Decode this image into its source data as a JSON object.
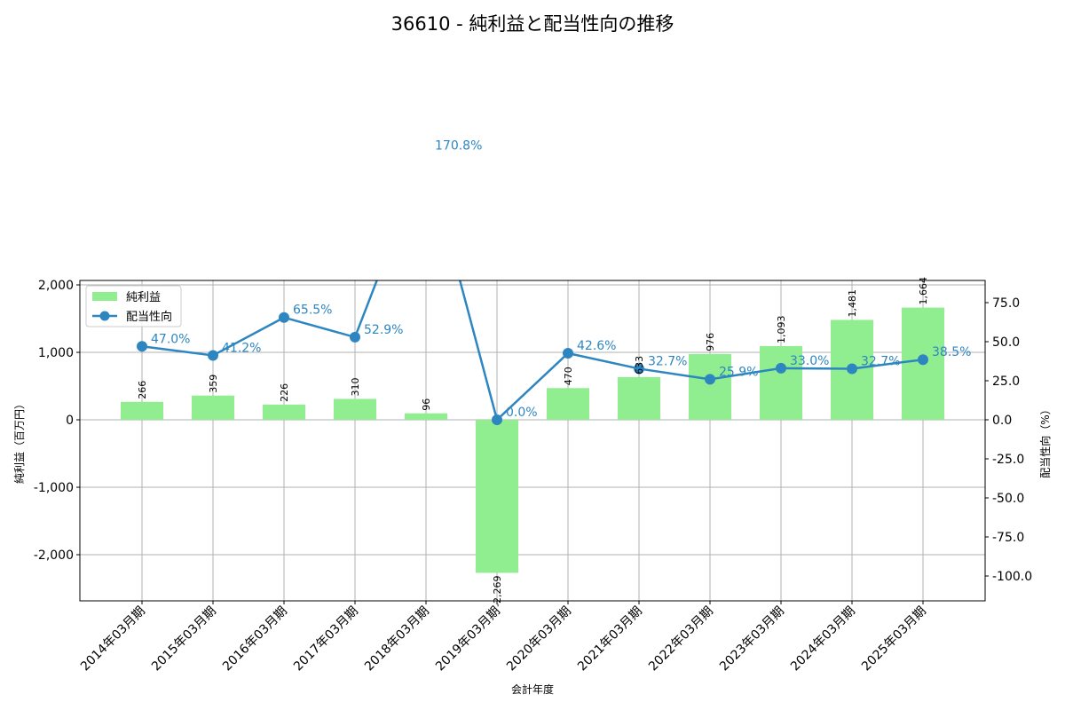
{
  "chart_data": {
    "type": "bar+line",
    "title": "36610 - 純利益と配当性向の推移",
    "xlabel": "会計年度",
    "ylabel": "純利益（百万円）",
    "y2label": "配当性向（%）",
    "categories": [
      "2014年03月期",
      "2015年03月期",
      "2016年03月期",
      "2017年03月期",
      "2018年03月期",
      "2019年03月期",
      "2020年03月期",
      "2021年03月期",
      "2022年03月期",
      "2023年03月期",
      "2024年03月期",
      "2025年03月期"
    ],
    "series": [
      {
        "name": "純利益",
        "type": "bar",
        "axis": "left",
        "color": "#90ee90",
        "values": [
          266,
          359,
          226,
          310,
          96,
          -2269,
          470,
          633,
          976,
          1093,
          1481,
          1664
        ],
        "labels": [
          "266",
          "359",
          "226",
          "310",
          "96",
          "-2,269",
          "470",
          "633",
          "976",
          "1,093",
          "1,481",
          "1,664"
        ]
      },
      {
        "name": "配当性向",
        "type": "line",
        "axis": "right",
        "color": "#2e86c1",
        "values": [
          47.0,
          41.2,
          65.5,
          52.9,
          170.8,
          0.0,
          42.6,
          32.7,
          25.9,
          33.0,
          32.7,
          38.5
        ],
        "labels": [
          "47.0%",
          "41.2%",
          "65.5%",
          "52.9%",
          "170.8%",
          "0.0%",
          "42.6%",
          "32.7%",
          "25.9%",
          "33.0%",
          "32.7%",
          "38.5%"
        ]
      }
    ],
    "ylim": [
      -2684,
      2066
    ],
    "y2lim": [
      -115.9,
      89.2
    ],
    "yticks": [
      {
        "v": 2000,
        "l": "2,000"
      },
      {
        "v": 1000,
        "l": "1,000"
      },
      {
        "v": 0,
        "l": "0"
      },
      {
        "v": -1000,
        "l": "-1,000"
      },
      {
        "v": -2000,
        "l": "-2,000"
      }
    ],
    "y2ticks": [
      {
        "v": 75,
        "l": "75.0"
      },
      {
        "v": 50,
        "l": "50.0"
      },
      {
        "v": 25,
        "l": "25.0"
      },
      {
        "v": 0,
        "l": "0.0"
      },
      {
        "v": -25,
        "l": "-25.0"
      },
      {
        "v": -50,
        "l": "-50.0"
      },
      {
        "v": -75,
        "l": "-75.0"
      },
      {
        "v": -100,
        "l": "-100.0"
      }
    ],
    "grid": true,
    "legend": "top-left"
  }
}
